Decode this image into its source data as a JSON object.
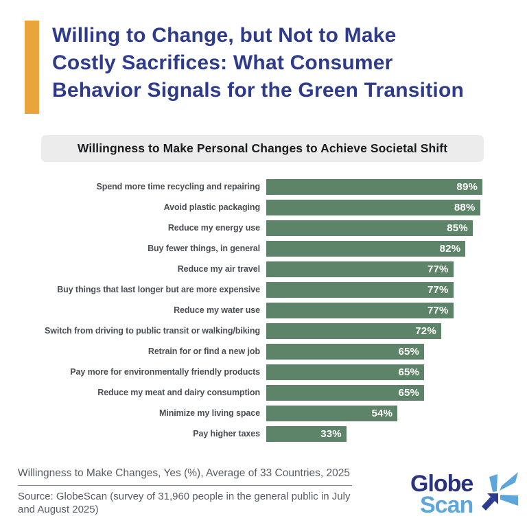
{
  "header": {
    "accent_color": "#e9a43c",
    "title_color": "#2e3a8c",
    "title": "Willing to Change, but Not to Make Costly Sacrifices: What Consumer Behavior Signals for the Green Transition",
    "title_lines": [
      "Willing to Change, but Not to Make",
      "Costly Sacrifices: What Consumer",
      "Behavior Signals for the Green Transition"
    ]
  },
  "subtitle": {
    "label": "Willingness to Make Personal Changes to Achieve Societal Shift",
    "bg_color": "#ececec"
  },
  "chart_data": {
    "type": "bar",
    "orientation": "horizontal",
    "title": "Willingness to Make Personal Changes to Achieve Societal Shift",
    "categories": [
      "Spend more time recycling and repairing",
      "Avoid plastic packaging",
      "Reduce my energy use",
      "Buy fewer things, in general",
      "Reduce my air travel",
      "Buy things that last longer but are more expensive",
      "Reduce my water use",
      "Switch from driving to public transit or walking/biking",
      "Retrain for or find a new job",
      "Pay more for environmentally friendly products",
      "Reduce my meat and dairy consumption",
      "Minimize my living space",
      "Pay higher taxes"
    ],
    "values": [
      89,
      88,
      85,
      82,
      77,
      77,
      77,
      72,
      65,
      65,
      65,
      54,
      33
    ],
    "value_suffix": "%",
    "xlim": [
      0,
      100
    ],
    "grid": false,
    "legend": null,
    "bar_color": "#5d8468",
    "value_label_color": "#ffffff",
    "caption": "Willingness to Make Changes, Yes (%), Average of 33 Countries, 2025"
  },
  "footer": {
    "caption": "Willingness to Make Changes, Yes (%), Average of 33 Countries, 2025",
    "source": "Source: GlobeScan (survey of 31,960 people in the general public in July and August 2025)"
  },
  "logo": {
    "line1": "Globe",
    "line2": "Scan",
    "navy_color": "#28327d",
    "light_blue_color": "#5ca6db"
  }
}
